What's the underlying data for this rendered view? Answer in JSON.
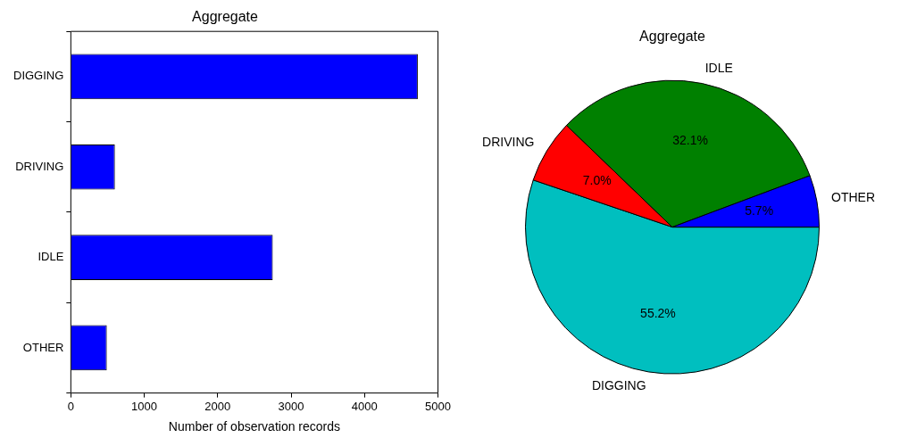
{
  "chart_data": [
    {
      "type": "bar",
      "title": "Aggregate",
      "orientation": "horizontal",
      "categories": [
        "DIGGING",
        "DRIVING",
        "IDLE",
        "OTHER"
      ],
      "values": [
        4725,
        600,
        2750,
        490
      ],
      "color": "#0000ff",
      "xlabel": "Number of observation records",
      "xlim": [
        0,
        5000
      ],
      "xticks": [
        0,
        1000,
        2000,
        3000,
        4000,
        5000
      ],
      "grid": false,
      "legend": false
    },
    {
      "type": "pie",
      "title": "Aggregate",
      "categories": [
        "OTHER",
        "IDLE",
        "DRIVING",
        "DIGGING"
      ],
      "values": [
        5.7,
        32.1,
        7.0,
        55.2
      ],
      "colors": [
        "#0000ff",
        "#008000",
        "#ff0000",
        "#00bfbf"
      ],
      "value_labels": [
        "5.7%",
        "32.1%",
        "7.0%",
        "55.2%"
      ],
      "legend": false
    }
  ]
}
